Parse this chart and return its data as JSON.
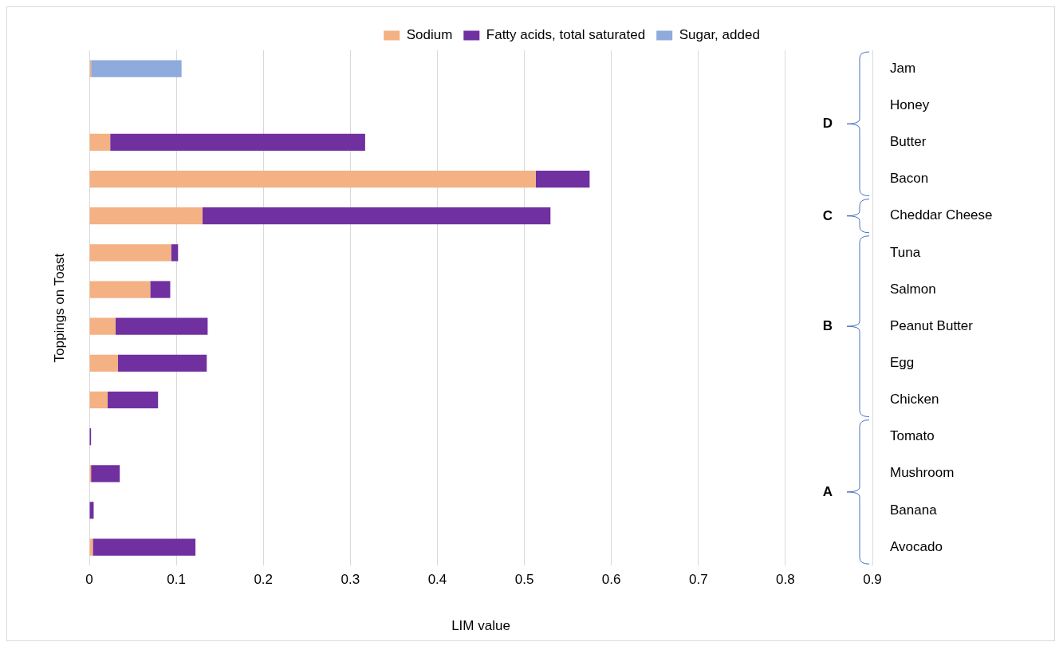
{
  "chart_data": {
    "type": "bar",
    "orientation": "horizontal",
    "stacked": true,
    "xlabel": "LIM value",
    "ylabel": "Toppings on Toast",
    "categories": [
      "Jam",
      "Honey",
      "Butter",
      "Bacon",
      "Cheddar Cheese",
      "Tuna",
      "Salmon",
      "Peanut Butter",
      "Egg",
      "Chicken",
      "Tomato",
      "Mushroom",
      "Banana",
      "Avocado"
    ],
    "series": [
      {
        "name": "Sodium",
        "color": "#f4b183",
        "values": [
          0.002,
          null,
          0.024,
          0.513,
          0.13,
          0.094,
          0.07,
          0.03,
          0.033,
          0.021,
          null,
          0.002,
          null,
          0.004
        ]
      },
      {
        "name": "Fatty acids, total saturated",
        "color": "#7030a0",
        "values": [
          null,
          null,
          0.293,
          0.062,
          0.4,
          0.008,
          0.023,
          0.106,
          0.102,
          0.058,
          0.002,
          0.033,
          0.005,
          0.118
        ]
      },
      {
        "name": "Sugar, added",
        "color": "#8faadc",
        "values": [
          0.104,
          null,
          null,
          null,
          null,
          null,
          null,
          null,
          null,
          null,
          null,
          null,
          null,
          null
        ]
      }
    ],
    "xlim": [
      0,
      0.9
    ],
    "xticks": [
      0,
      0.1,
      0.2,
      0.3,
      0.4,
      0.5,
      0.6,
      0.7,
      0.8,
      0.9
    ],
    "grid": "x",
    "legend": "top",
    "annotations": [
      "D",
      "C",
      "B",
      "A"
    ]
  }
}
